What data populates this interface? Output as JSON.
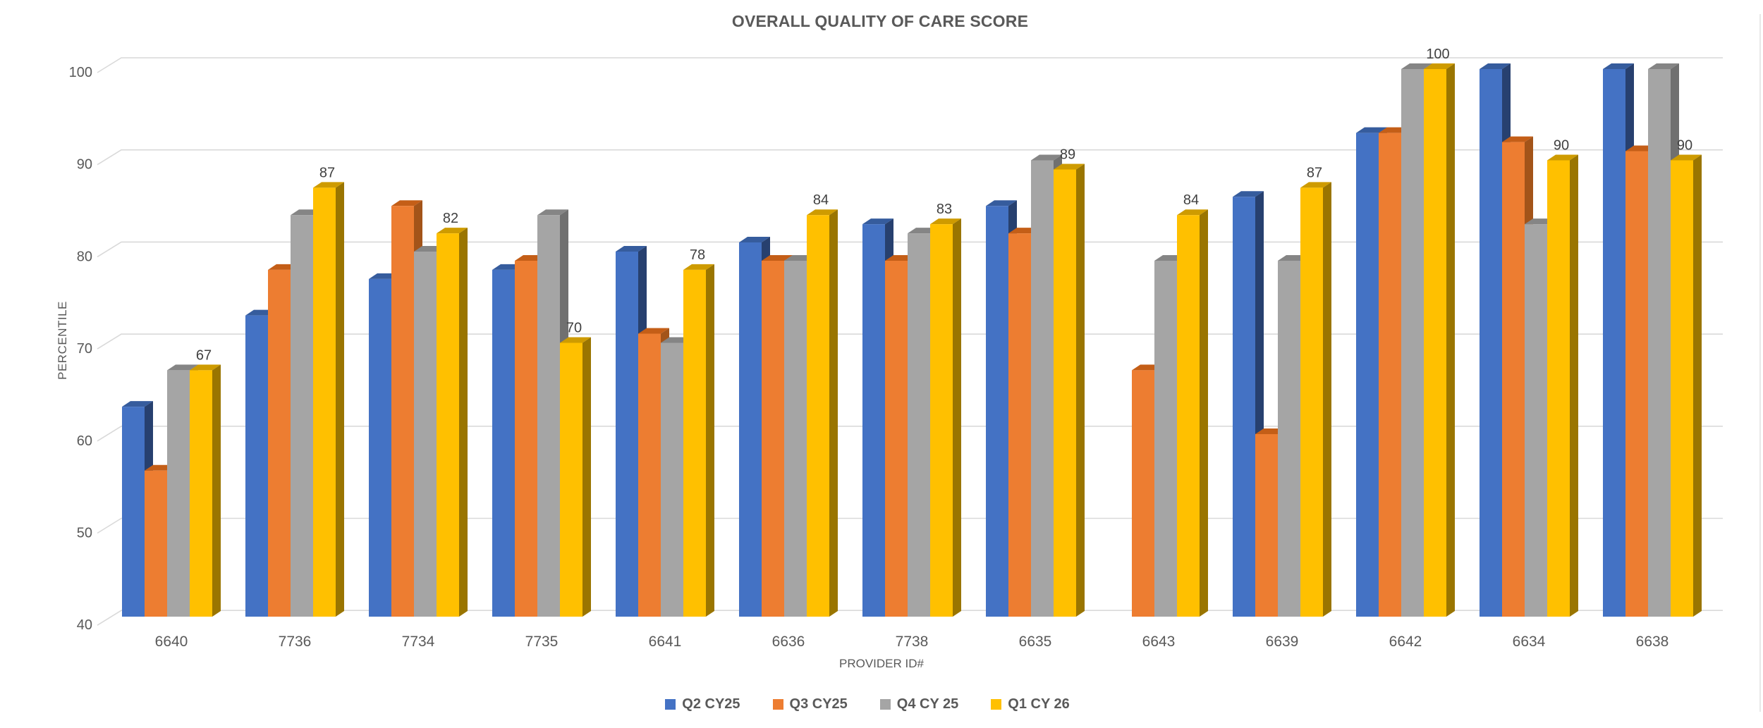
{
  "chart_data": {
    "type": "bar",
    "style": "3d-clustered-column",
    "title": "OVERALL QUALITY OF CARE SCORE",
    "xlabel": "PROVIDER ID#",
    "ylabel": "PERCENTILE",
    "ylim": [
      40,
      100
    ],
    "ytick_step": 10,
    "yticks": [
      40,
      50,
      60,
      70,
      80,
      90,
      100
    ],
    "grid": true,
    "gridline_color": "#D9D9D9",
    "axis_text_color": "#595959",
    "data_label_color": "#404040",
    "legend_position": "bottom",
    "categories": [
      "6640",
      "7736",
      "7734",
      "7735",
      "6641",
      "6636",
      "7738",
      "6635",
      "6643",
      "6639",
      "6642",
      "6634",
      "6638"
    ],
    "series": [
      {
        "name": "Q2 CY25",
        "color": "#4472C4",
        "top_color": "#365C9D",
        "side_color": "#27406F",
        "show_labels": false,
        "values": [
          63,
          73,
          77,
          78,
          80,
          81,
          83,
          85,
          null,
          86,
          93,
          100,
          100
        ]
      },
      {
        "name": "Q3 CY25",
        "color": "#ED7D31",
        "top_color": "#C45E17",
        "side_color": "#A35419",
        "show_labels": false,
        "values": [
          56,
          78,
          85,
          79,
          71,
          79,
          79,
          82,
          67,
          60,
          93,
          92,
          91
        ]
      },
      {
        "name": "Q4 CY 25",
        "color": "#A5A5A5",
        "top_color": "#858585",
        "side_color": "#707070",
        "show_labels": false,
        "values": [
          67,
          84,
          80,
          84,
          70,
          79,
          82,
          90,
          79,
          79,
          100,
          83,
          100
        ]
      },
      {
        "name": "Q1 CY 26",
        "color": "#FFC000",
        "top_color": "#CE9B00",
        "side_color": "#9A7500",
        "show_labels": true,
        "values": [
          67,
          87,
          82,
          70,
          78,
          84,
          83,
          89,
          84,
          87,
          100,
          90,
          90
        ]
      }
    ]
  }
}
